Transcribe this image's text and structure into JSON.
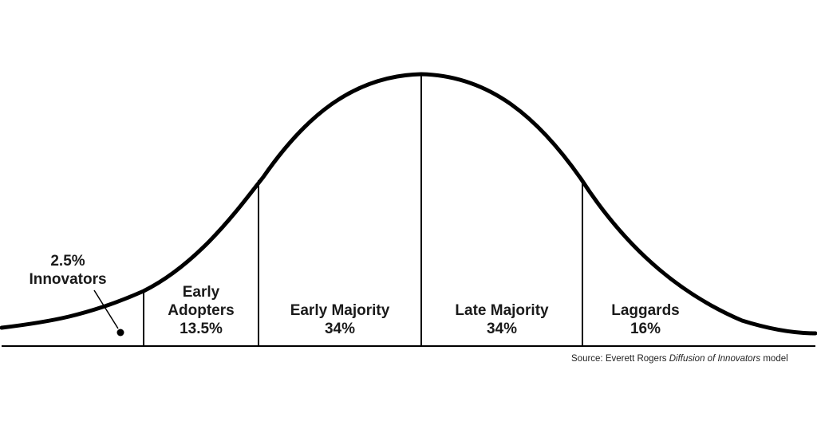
{
  "segments": [
    {
      "name": "Innovators",
      "percent": "2.5%",
      "value": 2.5
    },
    {
      "name": "Early Adopters",
      "name_line1": "Early",
      "name_line2": "Adopters",
      "percent": "13.5%",
      "value": 13.5
    },
    {
      "name": "Early Majority",
      "percent": "34%",
      "value": 34
    },
    {
      "name": "Late Majority",
      "percent": "34%",
      "value": 34
    },
    {
      "name": "Laggards",
      "percent": "16%",
      "value": 16
    }
  ],
  "source": {
    "prefix": "Source: Everett Rogers ",
    "italic": "Diffusion of Innovators",
    "suffix": " model"
  },
  "colors": {
    "curve": "#000000",
    "text": "#1a1a1a"
  }
}
